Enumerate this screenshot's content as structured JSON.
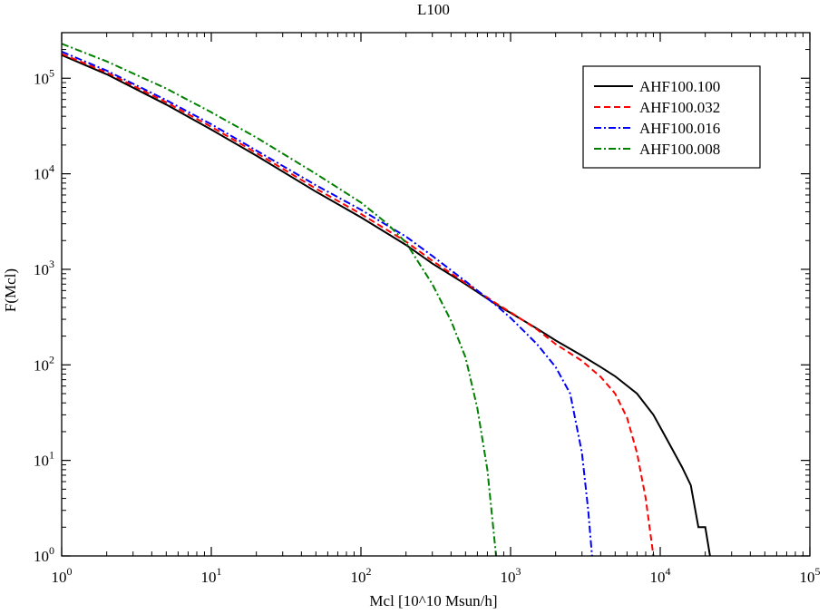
{
  "chart_data": {
    "type": "line",
    "title": "L100",
    "xlabel": "Mcl [10^10 Msun/h]",
    "ylabel": "F(Mcl)",
    "x_scale": "log",
    "y_scale": "log",
    "xlim": [
      1,
      100000
    ],
    "ylim": [
      1,
      300000
    ],
    "x_ticks": [
      {
        "base": "10",
        "exp": "0",
        "value": 1
      },
      {
        "base": "10",
        "exp": "1",
        "value": 10
      },
      {
        "base": "10",
        "exp": "2",
        "value": 100
      },
      {
        "base": "10",
        "exp": "3",
        "value": 1000
      },
      {
        "base": "10",
        "exp": "4",
        "value": 10000
      },
      {
        "base": "10",
        "exp": "5",
        "value": 100000
      }
    ],
    "y_ticks": [
      {
        "base": "10",
        "exp": "0",
        "value": 1
      },
      {
        "base": "10",
        "exp": "1",
        "value": 10
      },
      {
        "base": "10",
        "exp": "2",
        "value": 100
      },
      {
        "base": "10",
        "exp": "3",
        "value": 1000
      },
      {
        "base": "10",
        "exp": "4",
        "value": 10000
      },
      {
        "base": "10",
        "exp": "5",
        "value": 100000
      }
    ],
    "grid": false,
    "legend_position": "top-right",
    "series": [
      {
        "name": "AHF100.100",
        "color": "#000000",
        "dash": "solid",
        "points": [
          [
            1,
            175000
          ],
          [
            2,
            110000
          ],
          [
            5,
            53000
          ],
          [
            10,
            29000
          ],
          [
            20,
            15500
          ],
          [
            50,
            6500
          ],
          [
            100,
            3500
          ],
          [
            200,
            1800
          ],
          [
            300,
            1150
          ],
          [
            500,
            700
          ],
          [
            800,
            430
          ],
          [
            1000,
            350
          ],
          [
            1500,
            240
          ],
          [
            2000,
            180
          ],
          [
            3000,
            125
          ],
          [
            4000,
            95
          ],
          [
            5000,
            76
          ],
          [
            7000,
            50
          ],
          [
            9000,
            30
          ],
          [
            11000,
            17
          ],
          [
            14000,
            8.5
          ],
          [
            16000,
            5.5
          ],
          [
            18000,
            2
          ],
          [
            20000,
            2
          ],
          [
            21500,
            1
          ]
        ]
      },
      {
        "name": "AHF100.032",
        "color": "#ff0000",
        "dash": "dash",
        "points": [
          [
            1,
            180000
          ],
          [
            2,
            115000
          ],
          [
            5,
            56000
          ],
          [
            10,
            31000
          ],
          [
            20,
            16500
          ],
          [
            50,
            7000
          ],
          [
            100,
            3800
          ],
          [
            200,
            1950
          ],
          [
            300,
            1230
          ],
          [
            500,
            720
          ],
          [
            800,
            440
          ],
          [
            1000,
            355
          ],
          [
            1500,
            235
          ],
          [
            2000,
            165
          ],
          [
            3000,
            110
          ],
          [
            4000,
            75
          ],
          [
            5000,
            50
          ],
          [
            6000,
            28
          ],
          [
            7000,
            12
          ],
          [
            8000,
            4
          ],
          [
            9000,
            1
          ]
        ]
      },
      {
        "name": "AHF100.016",
        "color": "#0000ff",
        "dash": "dashdot",
        "points": [
          [
            1,
            190000
          ],
          [
            2,
            120000
          ],
          [
            5,
            59000
          ],
          [
            10,
            33000
          ],
          [
            20,
            17500
          ],
          [
            50,
            7600
          ],
          [
            100,
            4200
          ],
          [
            200,
            2200
          ],
          [
            300,
            1380
          ],
          [
            500,
            750
          ],
          [
            800,
            420
          ],
          [
            1000,
            310
          ],
          [
            1500,
            165
          ],
          [
            2000,
            95
          ],
          [
            2500,
            50
          ],
          [
            3000,
            12
          ],
          [
            3300,
            3
          ],
          [
            3500,
            1
          ]
        ]
      },
      {
        "name": "AHF100.008",
        "color": "#008000",
        "dash": "dashdot",
        "points": [
          [
            1,
            230000
          ],
          [
            2,
            150000
          ],
          [
            5,
            78000
          ],
          [
            10,
            44000
          ],
          [
            20,
            24000
          ],
          [
            50,
            10000
          ],
          [
            100,
            5000
          ],
          [
            150,
            3000
          ],
          [
            200,
            1900
          ],
          [
            300,
            700
          ],
          [
            400,
            290
          ],
          [
            500,
            120
          ],
          [
            600,
            35
          ],
          [
            700,
            8
          ],
          [
            800,
            1
          ]
        ]
      }
    ]
  }
}
